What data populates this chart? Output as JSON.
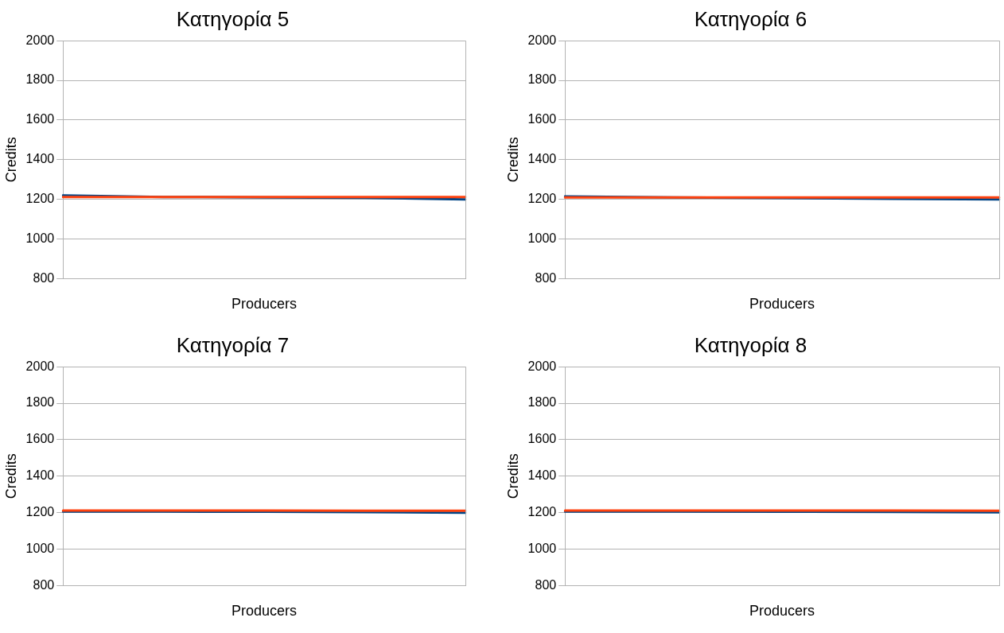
{
  "chart_data": [
    {
      "type": "line",
      "title": "Κατηγορία 5",
      "xlabel": "Producers",
      "ylabel": "Credits",
      "categories": [
        null,
        null,
        null,
        null,
        null
      ],
      "series": [
        {
          "color": "#004586",
          "values": [
            1220,
            1212,
            1210,
            1208,
            1200
          ]
        },
        {
          "color": "#ff420e",
          "values": [
            1212,
            1212,
            1212,
            1212,
            1212
          ]
        }
      ],
      "ylim": [
        800,
        2000
      ],
      "yticks": [
        800,
        1000,
        1200,
        1400,
        1600,
        1800,
        2000
      ],
      "grid": "y",
      "legend": false,
      "tick_labels": "y",
      "marker": "none",
      "line_style": "solid"
    },
    {
      "type": "line",
      "title": "Κατηγορία 6",
      "xlabel": "Producers",
      "ylabel": "Credits",
      "categories": [
        null,
        null,
        null,
        null,
        null
      ],
      "series": [
        {
          "color": "#004586",
          "values": [
            1215,
            1210,
            1207,
            1203,
            1200
          ]
        },
        {
          "color": "#ff420e",
          "values": [
            1210,
            1210,
            1210,
            1210,
            1210
          ]
        }
      ],
      "ylim": [
        800,
        2000
      ],
      "yticks": [
        800,
        1000,
        1200,
        1400,
        1600,
        1800,
        2000
      ],
      "grid": "y",
      "legend": false,
      "tick_labels": "y",
      "marker": "none",
      "line_style": "solid"
    },
    {
      "type": "line",
      "title": "Κατηγορία 7",
      "xlabel": "Producers",
      "ylabel": "Credits",
      "categories": [
        null,
        null,
        null,
        null,
        null
      ],
      "series": [
        {
          "color": "#004586",
          "values": [
            1206,
            1206,
            1205,
            1203,
            1200
          ]
        },
        {
          "color": "#ff420e",
          "values": [
            1212,
            1212,
            1212,
            1210,
            1210
          ]
        }
      ],
      "ylim": [
        800,
        2000
      ],
      "yticks": [
        800,
        1000,
        1200,
        1400,
        1600,
        1800,
        2000
      ],
      "grid": "y",
      "legend": false,
      "tick_labels": "y",
      "marker": "none",
      "line_style": "solid"
    },
    {
      "type": "line",
      "title": "Κατηγορία 8",
      "xlabel": "Producers",
      "ylabel": "Credits",
      "categories": [
        null,
        null,
        null,
        null,
        null
      ],
      "series": [
        {
          "color": "#004586",
          "values": [
            1206,
            1206,
            1205,
            1204,
            1202
          ]
        },
        {
          "color": "#ff420e",
          "values": [
            1212,
            1212,
            1212,
            1212,
            1210
          ]
        }
      ],
      "ylim": [
        800,
        2000
      ],
      "yticks": [
        800,
        1000,
        1200,
        1400,
        1600,
        1800,
        2000
      ],
      "grid": "y",
      "legend": false,
      "tick_labels": "y",
      "marker": "none",
      "line_style": "solid"
    }
  ]
}
